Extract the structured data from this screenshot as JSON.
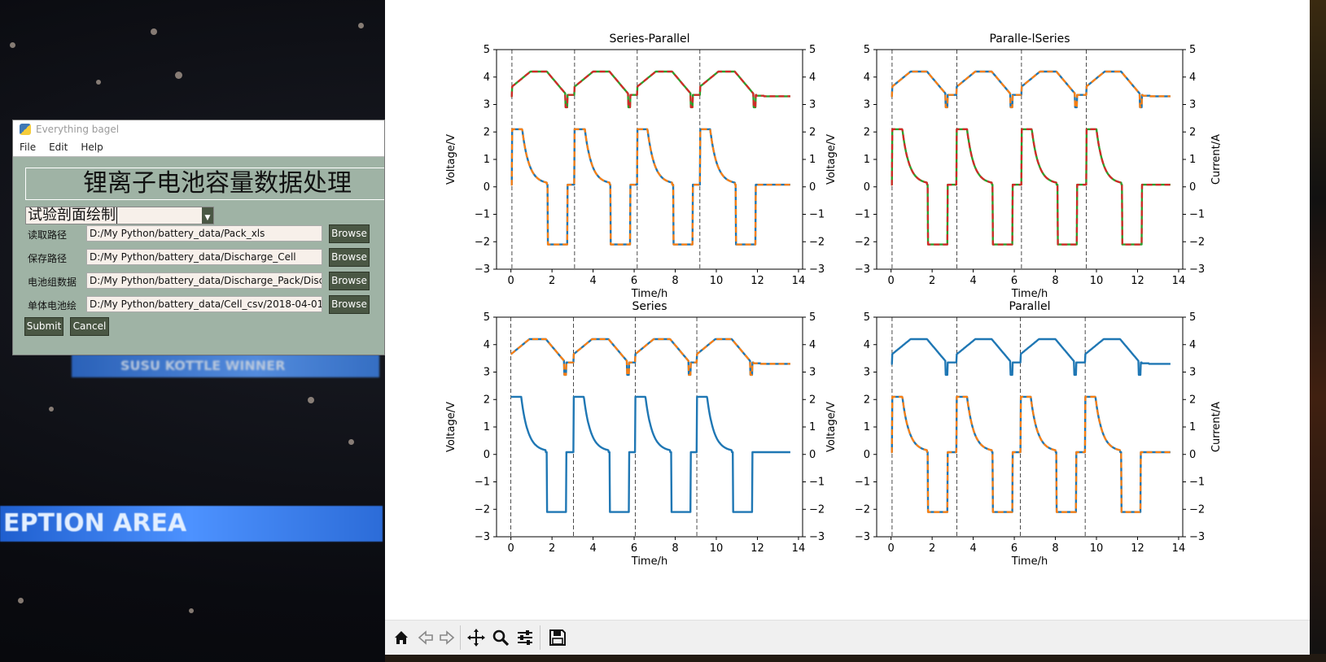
{
  "desktop": {
    "banner_top": "SUSU KOTTLE WINNER",
    "banner_bottom": "EPTION AREA"
  },
  "tk_window": {
    "title": "Everything bagel",
    "menu": [
      "File",
      "Edit",
      "Help"
    ],
    "banner": "锂离子电池容量数据处理",
    "combo_value": "试验剖面绘制",
    "rows": [
      {
        "label": "读取路径",
        "value": "D:/My Python/battery_data/Pack_xls",
        "button": "Browse"
      },
      {
        "label": "保存路径",
        "value": "D:/My Python/battery_data/Discharge_Cell",
        "button": "Browse"
      },
      {
        "label": "电池组数据",
        "value": "D:/My Python/battery_data/Discharge_Pack/Disc",
        "button": "Browse"
      },
      {
        "label": "单体电池绘",
        "value": "D:/My Python/battery_data/Cell_csv/2018-04-01.",
        "button": "Browse"
      }
    ],
    "submit_label": "Submit",
    "cancel_label": "Cancel"
  },
  "toolbar": {
    "icons": [
      "home-icon",
      "back-icon",
      "forward-icon",
      "pan-icon",
      "zoom-icon",
      "configure-icon",
      "save-icon"
    ]
  },
  "colors": {
    "blue": "#1f77b4",
    "orange": "#ff7f0e",
    "green": "#2ca02c",
    "red": "#d62728"
  },
  "chart_data": [
    {
      "type": "line",
      "title": "Series-Parallel",
      "xlabel": "Time/h",
      "ylabel_left": "Voltage/V",
      "ylabel_right": "",
      "xlim": [
        -0.7,
        14.2
      ],
      "ylim": [
        -3,
        5
      ],
      "xticks": [
        0,
        2,
        4,
        6,
        8,
        10,
        12,
        14
      ],
      "yticks": [
        -3,
        -2,
        -1,
        0,
        1,
        2,
        3,
        4,
        5
      ],
      "vlines": [
        0.05,
        3.1,
        6.15,
        9.2
      ],
      "cycles": [
        0.05,
        3.1,
        6.15,
        9.2
      ],
      "series": [
        {
          "kind": "voltage",
          "style": "solid",
          "color": "#2ca02c"
        },
        {
          "kind": "voltage",
          "style": "dashed",
          "color": "#d62728"
        },
        {
          "kind": "current",
          "style": "solid",
          "color": "#1f77b4"
        },
        {
          "kind": "current",
          "style": "dashed",
          "color": "#ff7f0e"
        }
      ]
    },
    {
      "type": "line",
      "title": "Paralle-lSeries",
      "xlabel": "Time/h",
      "ylabel_left": "Voltage/V",
      "ylabel_right": "Current/A",
      "xlim": [
        -0.7,
        14.2
      ],
      "ylim": [
        -3,
        5
      ],
      "xticks": [
        0,
        2,
        4,
        6,
        8,
        10,
        12,
        14
      ],
      "yticks": [
        -3,
        -2,
        -1,
        0,
        1,
        2,
        3,
        4,
        5
      ],
      "vlines": [
        0.05,
        3.2,
        6.35,
        9.5
      ],
      "cycles": [
        0.05,
        3.2,
        6.35,
        9.5
      ],
      "series": [
        {
          "kind": "voltage",
          "style": "solid",
          "color": "#1f77b4"
        },
        {
          "kind": "voltage",
          "style": "dashed",
          "color": "#ff7f0e"
        },
        {
          "kind": "current",
          "style": "solid",
          "color": "#2ca02c"
        },
        {
          "kind": "current",
          "style": "dashed",
          "color": "#d62728"
        }
      ]
    },
    {
      "type": "line",
      "title": "Series",
      "xlabel": "Time/h",
      "ylabel_left": "Voltage/V",
      "ylabel_right": "",
      "xlim": [
        -0.7,
        14.2
      ],
      "ylim": [
        -3,
        5
      ],
      "xticks": [
        0,
        2,
        4,
        6,
        8,
        10,
        12,
        14
      ],
      "yticks": [
        -3,
        -2,
        -1,
        0,
        1,
        2,
        3,
        4,
        5
      ],
      "vlines": [
        0.0,
        3.05,
        6.05,
        9.05
      ],
      "cycles": [
        0.0,
        3.05,
        6.05,
        9.05
      ],
      "series": [
        {
          "kind": "voltage",
          "style": "solid",
          "color": "#1f77b4"
        },
        {
          "kind": "voltage",
          "style": "dashed",
          "color": "#ff7f0e"
        },
        {
          "kind": "current",
          "style": "solid",
          "color": "#1f77b4"
        }
      ]
    },
    {
      "type": "line",
      "title": "Parallel",
      "xlabel": "Time/h",
      "ylabel_left": "Voltage/V",
      "ylabel_right": "Current/A",
      "xlim": [
        -0.7,
        14.2
      ],
      "ylim": [
        -3,
        5
      ],
      "xticks": [
        0,
        2,
        4,
        6,
        8,
        10,
        12,
        14
      ],
      "yticks": [
        -3,
        -2,
        -1,
        0,
        1,
        2,
        3,
        4,
        5
      ],
      "vlines": [
        0.05,
        3.2,
        6.3,
        9.45
      ],
      "cycles": [
        0.05,
        3.2,
        6.3,
        9.45
      ],
      "series": [
        {
          "kind": "voltage",
          "style": "solid",
          "color": "#1f77b4"
        },
        {
          "kind": "current",
          "style": "solid",
          "color": "#1f77b4"
        },
        {
          "kind": "current",
          "style": "dashed",
          "color": "#ff7f0e"
        }
      ]
    }
  ]
}
